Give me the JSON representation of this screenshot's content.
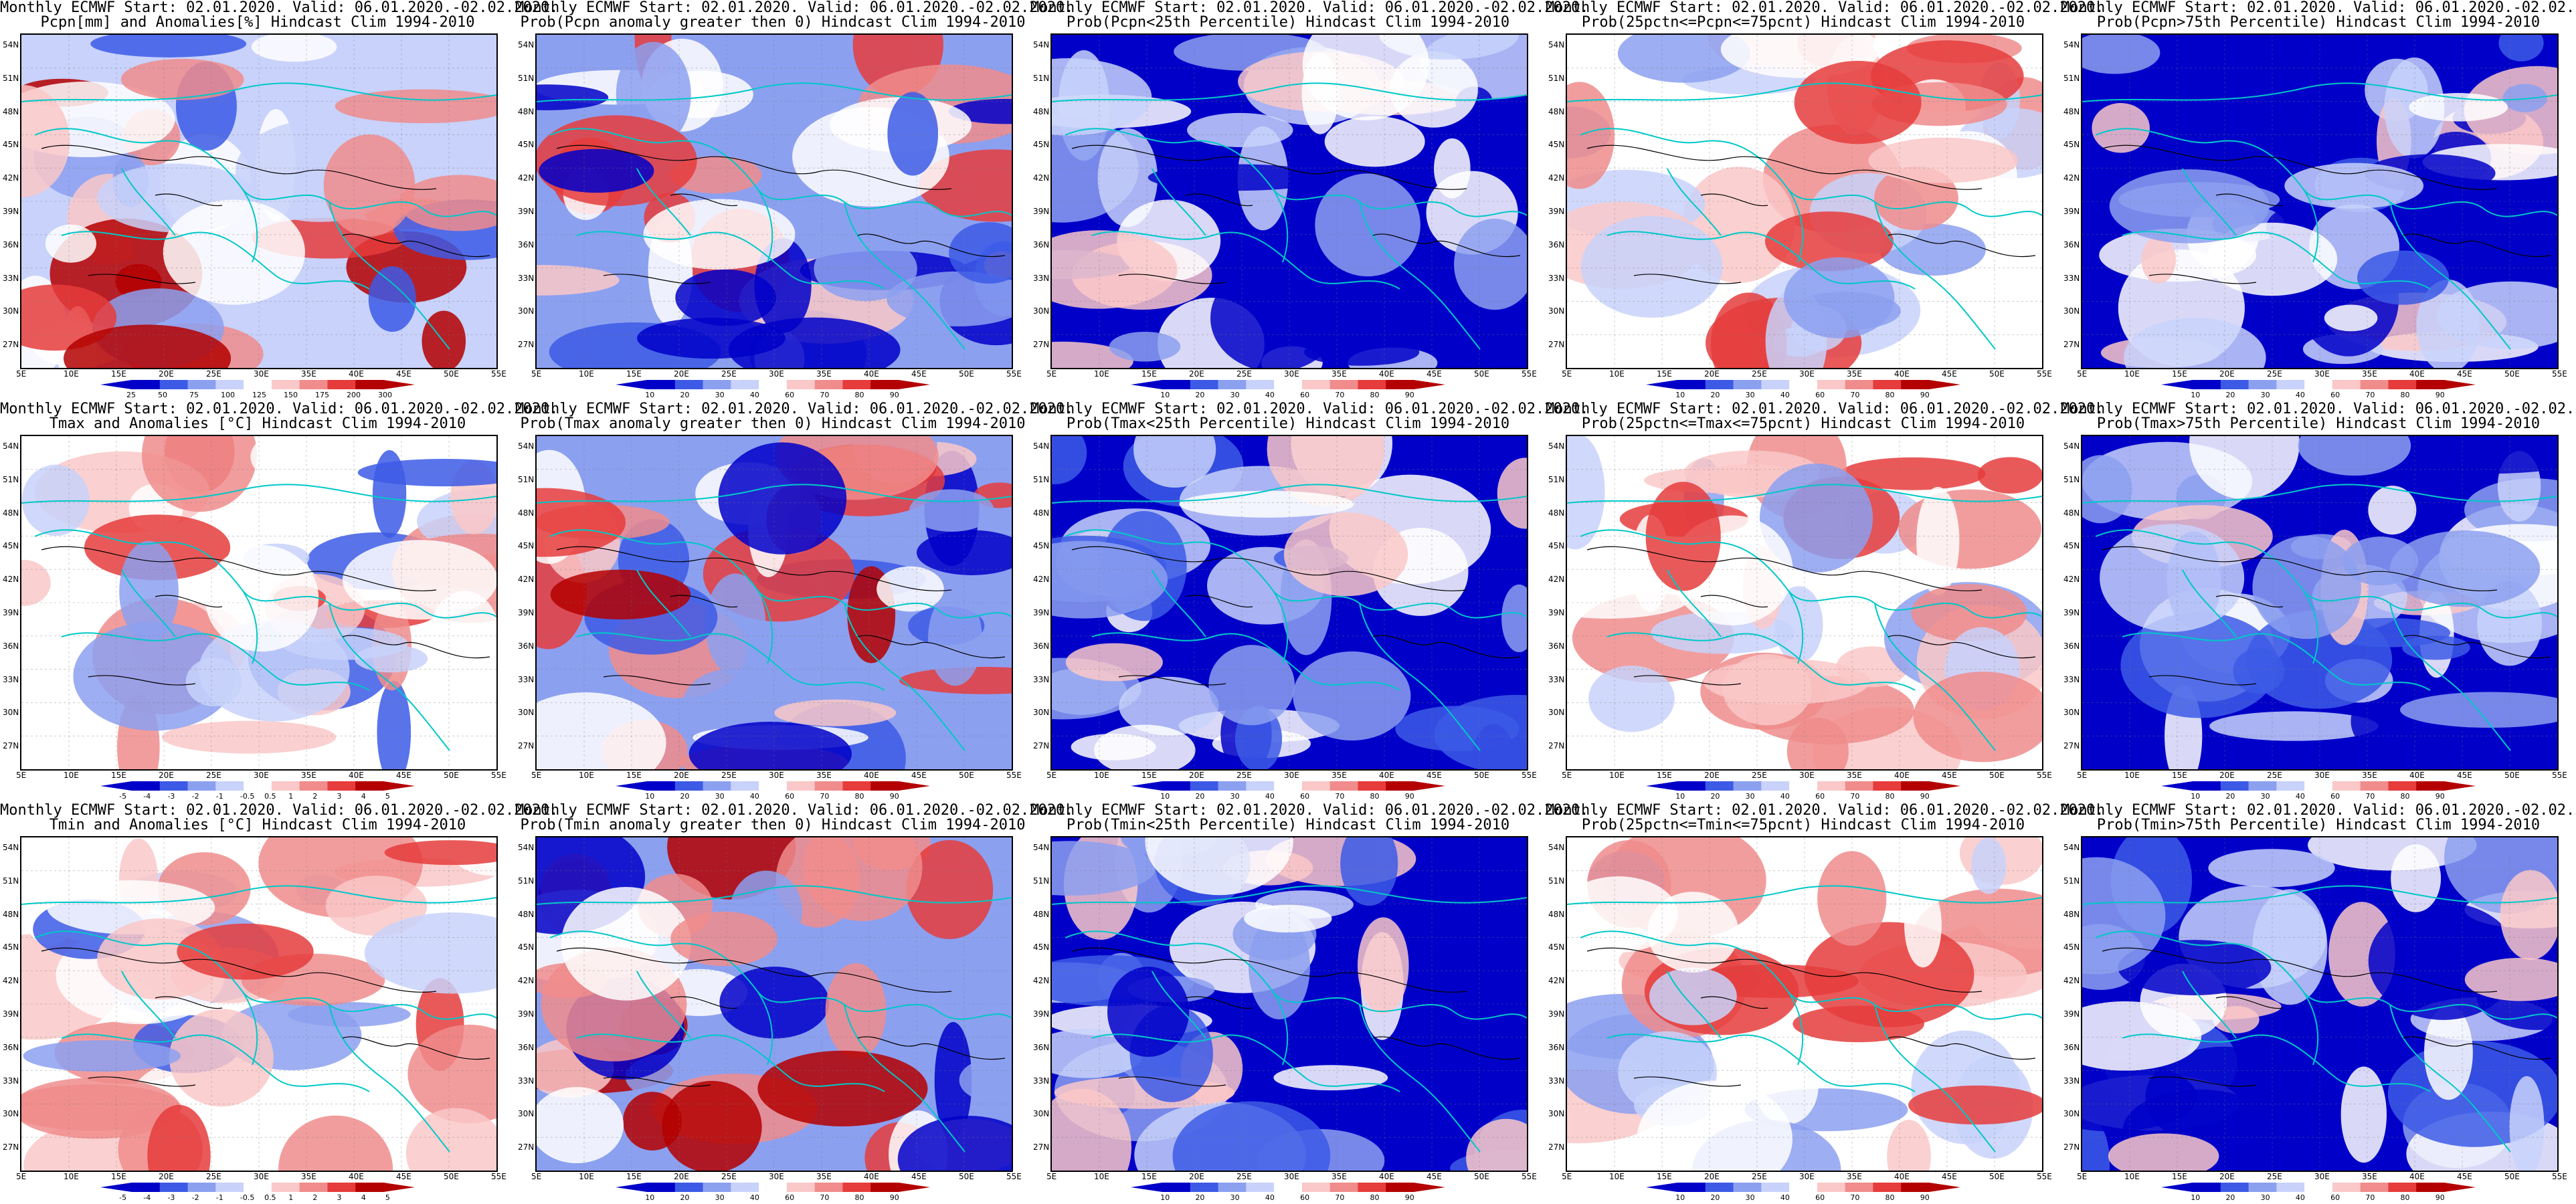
{
  "colors": {
    "blue_dark": "#0000c8",
    "blue_mid": "#3c5ae6",
    "blue_light": "#8ca0f0",
    "blue_pale": "#c8d2fa",
    "white": "#ffffff",
    "red_pale": "#fac8c8",
    "red_light": "#f08c8c",
    "red_mid": "#e63c3c",
    "red_dark": "#b40000",
    "coast": "#00c8c8",
    "contour": "#000000"
  },
  "axes": {
    "lat_labels": [
      "54N",
      "51N",
      "48N",
      "45N",
      "42N",
      "39N",
      "36N",
      "33N",
      "30N",
      "27N"
    ],
    "lon_labels": [
      "5E",
      "10E",
      "15E",
      "20E",
      "25E",
      "30E",
      "35E",
      "40E",
      "45E",
      "50E",
      "55E"
    ]
  },
  "header_common": "Monthly ECMWF Start: 02.01.2020. Valid: 06.01.2020.-02.02.2020.",
  "panels": [
    {
      "title2": "Pcpn[mm] and Anomalies[%] Hindcast Clim 1994-2010",
      "scheme": "anom_pcpn",
      "cbar_labels": [
        "25",
        "50",
        "75",
        "100",
        "125",
        "150",
        "175",
        "200",
        "300"
      ]
    },
    {
      "title2": "Prob(Pcpn anomaly greater then 0) Hindcast Clim 1994-2010",
      "scheme": "prob_wet",
      "cbar_labels": [
        "10",
        "20",
        "30",
        "40",
        "60",
        "70",
        "80",
        "90"
      ]
    },
    {
      "title2": "Prob(Pcpn<25th Percentile) Hindcast Clim 1994-2010",
      "scheme": "prob_blue",
      "cbar_labels": [
        "10",
        "20",
        "30",
        "40",
        "60",
        "70",
        "80",
        "90"
      ]
    },
    {
      "title2": "Prob(25pctn<=Pcpn<=75pcnt) Hindcast Clim 1994-2010",
      "scheme": "prob_mix",
      "cbar_labels": [
        "10",
        "20",
        "30",
        "40",
        "60",
        "70",
        "80",
        "90"
      ]
    },
    {
      "title2": "Prob(Pcpn>75th Percentile) Hindcast Clim 1994-2010",
      "scheme": "prob_blue",
      "cbar_labels": [
        "10",
        "20",
        "30",
        "40",
        "60",
        "70",
        "80",
        "90"
      ]
    },
    {
      "title2": "Tmax and Anomalies [°C] Hindcast Clim 1994-2010",
      "scheme": "anom_temp",
      "cbar_labels": [
        "-5",
        "-4",
        "-3",
        "-2",
        "-1",
        "-0.5",
        "0.5",
        "1",
        "2",
        "3",
        "4",
        "5"
      ]
    },
    {
      "title2": "Prob(Tmax anomaly greater then 0) Hindcast Clim 1994-2010",
      "scheme": "prob_warm",
      "cbar_labels": [
        "10",
        "20",
        "30",
        "40",
        "60",
        "70",
        "80",
        "90"
      ]
    },
    {
      "title2": "Prob(Tmax<25th Percentile) Hindcast Clim 1994-2010",
      "scheme": "prob_blue",
      "cbar_labels": [
        "10",
        "20",
        "30",
        "40",
        "60",
        "70",
        "80",
        "90"
      ]
    },
    {
      "title2": "Prob(25pctn<=Tmax<=75pcnt) Hindcast Clim 1994-2010",
      "scheme": "prob_mix",
      "cbar_labels": [
        "10",
        "20",
        "30",
        "40",
        "60",
        "70",
        "80",
        "90"
      ]
    },
    {
      "title2": "Prob(Tmax>75th Percentile) Hindcast Clim 1994-2010",
      "scheme": "prob_blue",
      "cbar_labels": [
        "10",
        "20",
        "30",
        "40",
        "60",
        "70",
        "80",
        "90"
      ]
    },
    {
      "title2": "Tmin and Anomalies [°C] Hindcast Clim 1994-2010",
      "scheme": "anom_temp",
      "cbar_labels": [
        "-5",
        "-4",
        "-3",
        "-2",
        "-1",
        "-0.5",
        "0.5",
        "1",
        "2",
        "3",
        "4",
        "5"
      ]
    },
    {
      "title2": "Prob(Tmin anomaly greater then 0) Hindcast Clim 1994-2010",
      "scheme": "prob_warm",
      "cbar_labels": [
        "10",
        "20",
        "30",
        "40",
        "60",
        "70",
        "80",
        "90"
      ]
    },
    {
      "title2": "Prob(Tmin<25th Percentile) Hindcast Clim 1994-2010",
      "scheme": "prob_blue",
      "cbar_labels": [
        "10",
        "20",
        "30",
        "40",
        "60",
        "70",
        "80",
        "90"
      ]
    },
    {
      "title2": "Prob(25pctn<=Tmin<=75pcnt) Hindcast Clim 1994-2010",
      "scheme": "prob_mix",
      "cbar_labels": [
        "10",
        "20",
        "30",
        "40",
        "60",
        "70",
        "80",
        "90"
      ]
    },
    {
      "title2": "Prob(Tmin>75th Percentile) Hindcast Clim 1994-2010",
      "scheme": "prob_blue",
      "cbar_labels": [
        "10",
        "20",
        "30",
        "40",
        "60",
        "70",
        "80",
        "90"
      ]
    }
  ]
}
